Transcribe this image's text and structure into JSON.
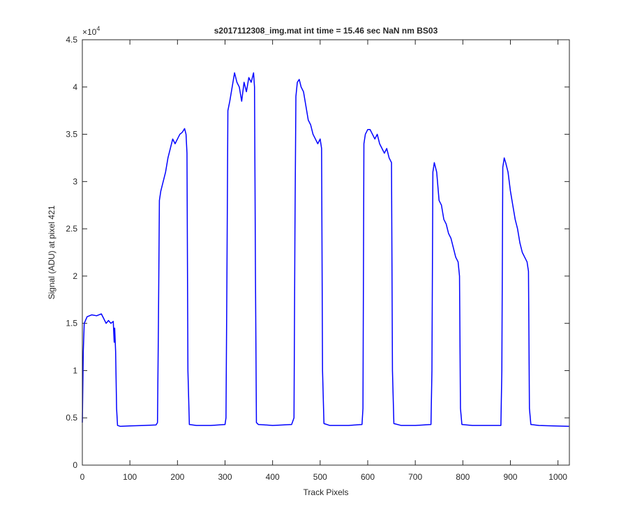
{
  "chart_data": {
    "type": "line",
    "title": "s2017112308_img.mat int time = 15.46 sec  NaN nm BS03",
    "x_label": "Track Pixels",
    "y_label": "Signal (ADU) at pixel 421",
    "y_multiplier_base": "×10",
    "y_multiplier_exponent": "4",
    "color": "#0000ff",
    "x": [
      0,
      2,
      4,
      10,
      20,
      30,
      40,
      45,
      50,
      55,
      60,
      65,
      67,
      68,
      70,
      72,
      74,
      80,
      100,
      130,
      155,
      158,
      160,
      162,
      165,
      170,
      175,
      180,
      185,
      190,
      195,
      200,
      205,
      210,
      215,
      218,
      220,
      222,
      225,
      240,
      270,
      300,
      302,
      304,
      306,
      310,
      315,
      320,
      325,
      330,
      335,
      340,
      345,
      350,
      355,
      360,
      362,
      364,
      366,
      370,
      400,
      440,
      445,
      447,
      449,
      452,
      456,
      460,
      465,
      470,
      475,
      480,
      485,
      490,
      495,
      500,
      503,
      505,
      508,
      520,
      560,
      588,
      590,
      592,
      595,
      600,
      605,
      610,
      615,
      620,
      625,
      630,
      635,
      640,
      645,
      650,
      652,
      655,
      670,
      700,
      733,
      735,
      737,
      740,
      745,
      750,
      755,
      760,
      765,
      770,
      775,
      780,
      785,
      790,
      793,
      795,
      798,
      820,
      860,
      880,
      882,
      884,
      887,
      890,
      895,
      900,
      905,
      910,
      915,
      920,
      925,
      930,
      935,
      938,
      940,
      943,
      960,
      990,
      1023
    ],
    "values": [
      0.45,
      1.2,
      1.5,
      1.57,
      1.59,
      1.58,
      1.6,
      1.55,
      1.5,
      1.53,
      1.5,
      1.52,
      1.3,
      1.45,
      1.2,
      0.6,
      0.42,
      0.41,
      0.415,
      0.42,
      0.425,
      0.45,
      1.5,
      2.8,
      2.9,
      3.0,
      3.1,
      3.25,
      3.35,
      3.45,
      3.4,
      3.45,
      3.5,
      3.52,
      3.56,
      3.5,
      3.3,
      1.0,
      0.43,
      0.42,
      0.42,
      0.43,
      0.5,
      2.0,
      3.75,
      3.85,
      4.0,
      4.15,
      4.05,
      4.0,
      3.85,
      4.05,
      3.95,
      4.1,
      4.05,
      4.15,
      4.0,
      2.0,
      0.45,
      0.43,
      0.42,
      0.43,
      0.5,
      2.5,
      3.9,
      4.05,
      4.08,
      4.0,
      3.95,
      3.8,
      3.65,
      3.6,
      3.5,
      3.45,
      3.4,
      3.45,
      3.35,
      1.0,
      0.44,
      0.42,
      0.42,
      0.43,
      0.6,
      3.4,
      3.5,
      3.55,
      3.55,
      3.5,
      3.45,
      3.5,
      3.4,
      3.35,
      3.3,
      3.35,
      3.25,
      3.2,
      1.0,
      0.44,
      0.42,
      0.42,
      0.43,
      1.0,
      3.1,
      3.2,
      3.1,
      2.8,
      2.75,
      2.6,
      2.55,
      2.45,
      2.4,
      2.3,
      2.2,
      2.15,
      2.0,
      0.6,
      0.43,
      0.42,
      0.42,
      0.42,
      1.0,
      3.15,
      3.25,
      3.2,
      3.1,
      2.9,
      2.75,
      2.6,
      2.5,
      2.35,
      2.25,
      2.2,
      2.15,
      2.05,
      0.6,
      0.43,
      0.42,
      0.415,
      0.41
    ],
    "xlim": [
      0,
      1024
    ],
    "xticks": [
      0,
      100,
      200,
      300,
      400,
      500,
      600,
      700,
      800,
      900,
      1000
    ],
    "ylim": [
      0,
      4.5
    ],
    "yticks": [
      0,
      0.5,
      1,
      1.5,
      2,
      2.5,
      3,
      3.5,
      4,
      4.5
    ]
  }
}
